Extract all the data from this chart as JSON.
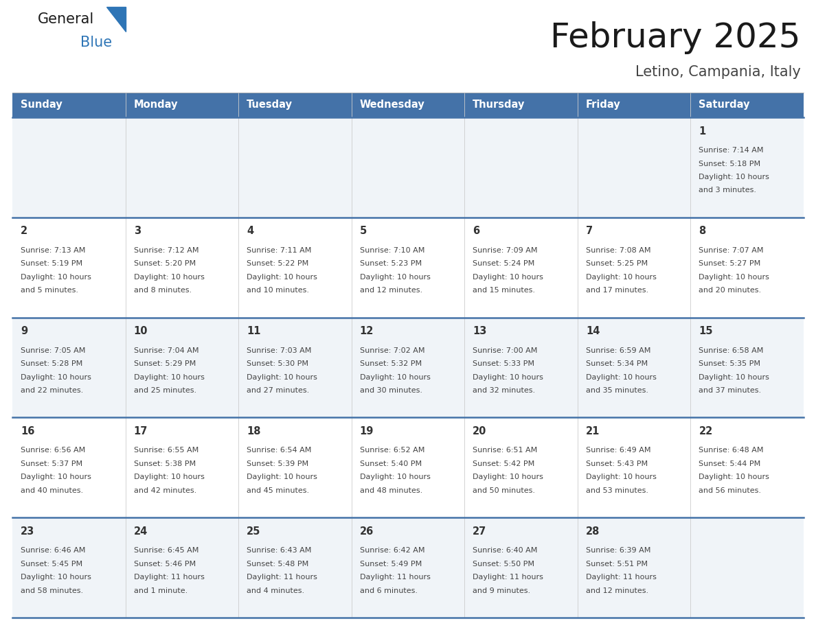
{
  "title": "February 2025",
  "subtitle": "Letino, Campania, Italy",
  "days_of_week": [
    "Sunday",
    "Monday",
    "Tuesday",
    "Wednesday",
    "Thursday",
    "Friday",
    "Saturday"
  ],
  "header_bg": "#4472A8",
  "header_text": "#FFFFFF",
  "row_bg_odd": "#F0F4F8",
  "row_bg_even": "#FFFFFF",
  "divider_color": "#4472A8",
  "day_number_color": "#333333",
  "cell_text_color": "#444444",
  "title_color": "#1a1a1a",
  "subtitle_color": "#444444",
  "logo_black": "#1a1a1a",
  "logo_blue": "#2E75B6",
  "calendar": [
    [
      null,
      null,
      null,
      null,
      null,
      null,
      {
        "day": 1,
        "sunrise": "7:14 AM",
        "sunset": "5:18 PM",
        "daylight": "10 hours and 3 minutes."
      }
    ],
    [
      {
        "day": 2,
        "sunrise": "7:13 AM",
        "sunset": "5:19 PM",
        "daylight": "10 hours and 5 minutes."
      },
      {
        "day": 3,
        "sunrise": "7:12 AM",
        "sunset": "5:20 PM",
        "daylight": "10 hours and 8 minutes."
      },
      {
        "day": 4,
        "sunrise": "7:11 AM",
        "sunset": "5:22 PM",
        "daylight": "10 hours and 10 minutes."
      },
      {
        "day": 5,
        "sunrise": "7:10 AM",
        "sunset": "5:23 PM",
        "daylight": "10 hours and 12 minutes."
      },
      {
        "day": 6,
        "sunrise": "7:09 AM",
        "sunset": "5:24 PM",
        "daylight": "10 hours and 15 minutes."
      },
      {
        "day": 7,
        "sunrise": "7:08 AM",
        "sunset": "5:25 PM",
        "daylight": "10 hours and 17 minutes."
      },
      {
        "day": 8,
        "sunrise": "7:07 AM",
        "sunset": "5:27 PM",
        "daylight": "10 hours and 20 minutes."
      }
    ],
    [
      {
        "day": 9,
        "sunrise": "7:05 AM",
        "sunset": "5:28 PM",
        "daylight": "10 hours and 22 minutes."
      },
      {
        "day": 10,
        "sunrise": "7:04 AM",
        "sunset": "5:29 PM",
        "daylight": "10 hours and 25 minutes."
      },
      {
        "day": 11,
        "sunrise": "7:03 AM",
        "sunset": "5:30 PM",
        "daylight": "10 hours and 27 minutes."
      },
      {
        "day": 12,
        "sunrise": "7:02 AM",
        "sunset": "5:32 PM",
        "daylight": "10 hours and 30 minutes."
      },
      {
        "day": 13,
        "sunrise": "7:00 AM",
        "sunset": "5:33 PM",
        "daylight": "10 hours and 32 minutes."
      },
      {
        "day": 14,
        "sunrise": "6:59 AM",
        "sunset": "5:34 PM",
        "daylight": "10 hours and 35 minutes."
      },
      {
        "day": 15,
        "sunrise": "6:58 AM",
        "sunset": "5:35 PM",
        "daylight": "10 hours and 37 minutes."
      }
    ],
    [
      {
        "day": 16,
        "sunrise": "6:56 AM",
        "sunset": "5:37 PM",
        "daylight": "10 hours and 40 minutes."
      },
      {
        "day": 17,
        "sunrise": "6:55 AM",
        "sunset": "5:38 PM",
        "daylight": "10 hours and 42 minutes."
      },
      {
        "day": 18,
        "sunrise": "6:54 AM",
        "sunset": "5:39 PM",
        "daylight": "10 hours and 45 minutes."
      },
      {
        "day": 19,
        "sunrise": "6:52 AM",
        "sunset": "5:40 PM",
        "daylight": "10 hours and 48 minutes."
      },
      {
        "day": 20,
        "sunrise": "6:51 AM",
        "sunset": "5:42 PM",
        "daylight": "10 hours and 50 minutes."
      },
      {
        "day": 21,
        "sunrise": "6:49 AM",
        "sunset": "5:43 PM",
        "daylight": "10 hours and 53 minutes."
      },
      {
        "day": 22,
        "sunrise": "6:48 AM",
        "sunset": "5:44 PM",
        "daylight": "10 hours and 56 minutes."
      }
    ],
    [
      {
        "day": 23,
        "sunrise": "6:46 AM",
        "sunset": "5:45 PM",
        "daylight": "10 hours and 58 minutes."
      },
      {
        "day": 24,
        "sunrise": "6:45 AM",
        "sunset": "5:46 PM",
        "daylight": "11 hours and 1 minute."
      },
      {
        "day": 25,
        "sunrise": "6:43 AM",
        "sunset": "5:48 PM",
        "daylight": "11 hours and 4 minutes."
      },
      {
        "day": 26,
        "sunrise": "6:42 AM",
        "sunset": "5:49 PM",
        "daylight": "11 hours and 6 minutes."
      },
      {
        "day": 27,
        "sunrise": "6:40 AM",
        "sunset": "5:50 PM",
        "daylight": "11 hours and 9 minutes."
      },
      {
        "day": 28,
        "sunrise": "6:39 AM",
        "sunset": "5:51 PM",
        "daylight": "11 hours and 12 minutes."
      },
      null
    ]
  ]
}
